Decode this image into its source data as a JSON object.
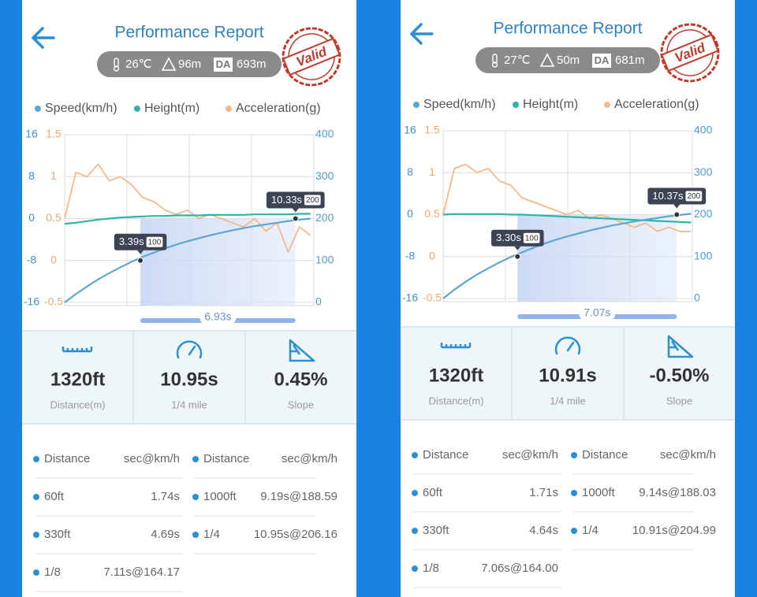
{
  "screens": [
    {
      "header": {
        "title": "Performance Report",
        "stamp": "Valid"
      },
      "conditions": {
        "temperature": "26℃",
        "altitude": "96m",
        "da_badge": "DA",
        "da": "693m"
      },
      "stats": [
        {
          "value": "1320ft",
          "label": "Distance(m)"
        },
        {
          "value": "10.95s",
          "label": "1/4 mile"
        },
        {
          "value": "0.45%",
          "label": "Slope"
        }
      ],
      "table": {
        "header": [
          "Distance",
          "sec@km/h",
          "Distance",
          "sec@km/h"
        ],
        "rows": [
          [
            "60ft",
            "1.74s",
            "1000ft",
            "9.19s@188.59"
          ],
          [
            "330ft",
            "4.69s",
            "1/4",
            "10.95s@206.16"
          ],
          [
            "1/8",
            "7.11s@164.17"
          ]
        ]
      }
    },
    {
      "header": {
        "title": "Performance Report",
        "stamp": "Valid"
      },
      "conditions": {
        "temperature": "27℃",
        "altitude": "50m",
        "da_badge": "DA",
        "da": "681m"
      },
      "stats": [
        {
          "value": "1320ft",
          "label": "Distance(m)"
        },
        {
          "value": "10.91s",
          "label": "1/4 mile"
        },
        {
          "value": "-0.50%",
          "label": "Slope"
        }
      ],
      "table": {
        "header": [
          "Distance",
          "sec@km/h",
          "Distance",
          "sec@km/h"
        ],
        "rows": [
          [
            "60ft",
            "1.71s",
            "1000ft",
            "9.14s@188.03"
          ],
          [
            "330ft",
            "4.64s",
            "1/4",
            "10.91s@204.99"
          ],
          [
            "1/8",
            "7.06s@164.00"
          ]
        ]
      }
    }
  ],
  "chart_data": [
    {
      "type": "line",
      "x": [
        0,
        0.5,
        1,
        1.5,
        2,
        2.5,
        3,
        3.5,
        4,
        4.5,
        5,
        5.5,
        6,
        6.5,
        7,
        7.5,
        8,
        8.5,
        9,
        9.5,
        10,
        10.5,
        11
      ],
      "xlim": [
        0,
        11.15
      ],
      "series": [
        {
          "name": "Speed(km/h)",
          "color": "#5ba6d6",
          "axis": "y2",
          "values": [
            0,
            20,
            38,
            55,
            70,
            84,
            97,
            109,
            119,
            129,
            138,
            146,
            153,
            160,
            166,
            172,
            177,
            182,
            186,
            190,
            194,
            197,
            200
          ]
        },
        {
          "name": "Height(m)",
          "color": "#2cb5a6",
          "axis": "y",
          "values": [
            -1,
            -0.8,
            -0.5,
            -0.2,
            0,
            0.2,
            0.3,
            0.4,
            0.5,
            0.5,
            0.6,
            0.6,
            0.6,
            0.7,
            0.7,
            0.7,
            0.7,
            0.8,
            0.8,
            0.8,
            0.8,
            0.9,
            0.9
          ]
        },
        {
          "name": "Acceleration(g)",
          "color": "#f3b98b",
          "axis": "y3",
          "values": [
            0.5,
            1.05,
            1.0,
            1.15,
            0.95,
            1.0,
            0.9,
            0.75,
            0.7,
            0.6,
            0.55,
            0.6,
            0.5,
            0.55,
            0.5,
            0.45,
            0.4,
            0.5,
            0.35,
            0.45,
            0.1,
            0.4,
            0.3
          ]
        }
      ],
      "ylim": [
        -16,
        16
      ],
      "yticks": [
        16,
        8,
        0,
        -8,
        -16
      ],
      "y3lim": [
        -0.5,
        1.5
      ],
      "y3ticks": [
        1.5,
        1,
        0.5,
        0,
        -0.5
      ],
      "y2lim": [
        0,
        400
      ],
      "y2ticks": [
        400,
        300,
        200,
        100,
        0
      ],
      "grid": true,
      "markers": [
        {
          "x": 3.39,
          "label": "3.39s",
          "value": 100
        },
        {
          "x": 10.33,
          "label": "10.33s",
          "value": 200
        }
      ],
      "range_label": "6.93s"
    },
    {
      "type": "line",
      "x": [
        0,
        0.5,
        1,
        1.5,
        2,
        2.5,
        3,
        3.5,
        4,
        4.5,
        5,
        5.5,
        6,
        6.5,
        7,
        7.5,
        8,
        8.5,
        9,
        9.5,
        10,
        10.5,
        11
      ],
      "xlim": [
        0,
        11.06
      ],
      "series": [
        {
          "name": "Speed(km/h)",
          "color": "#5ba6d6",
          "axis": "y2",
          "values": [
            0,
            21,
            40,
            57,
            72,
            86,
            99,
            110,
            121,
            131,
            140,
            148,
            155,
            162,
            168,
            174,
            179,
            184,
            188,
            192,
            196,
            199,
            202
          ]
        },
        {
          "name": "Height(m)",
          "color": "#2cb5a6",
          "axis": "y",
          "values": [
            0,
            0.1,
            0.1,
            0.1,
            0.1,
            0.1,
            0,
            0,
            -0.1,
            -0.2,
            -0.3,
            -0.4,
            -0.5,
            -0.6,
            -0.7,
            -0.8,
            -0.9,
            -1,
            -1.1,
            -1.2,
            -1.3,
            -1.4,
            -1.5
          ]
        },
        {
          "name": "Acceleration(g)",
          "color": "#f3b98b",
          "axis": "y3",
          "values": [
            0.5,
            1.05,
            1.1,
            1.0,
            1.05,
            0.9,
            0.85,
            0.7,
            0.65,
            0.6,
            0.55,
            0.5,
            0.55,
            0.45,
            0.5,
            0.45,
            0.4,
            0.35,
            0.4,
            0.3,
            0.35,
            0.3,
            0.3
          ]
        }
      ],
      "ylim": [
        -16,
        16
      ],
      "yticks": [
        16,
        8,
        0,
        -8,
        -16
      ],
      "y3lim": [
        -0.5,
        1.5
      ],
      "y3ticks": [
        1.5,
        1,
        0.5,
        0,
        -0.5
      ],
      "y2lim": [
        0,
        400
      ],
      "y2ticks": [
        400,
        300,
        200,
        100,
        0
      ],
      "grid": true,
      "markers": [
        {
          "x": 3.3,
          "label": "3.30s",
          "value": 100
        },
        {
          "x": 10.37,
          "label": "10.37s",
          "value": 200
        }
      ],
      "range_label": "7.07s"
    }
  ]
}
